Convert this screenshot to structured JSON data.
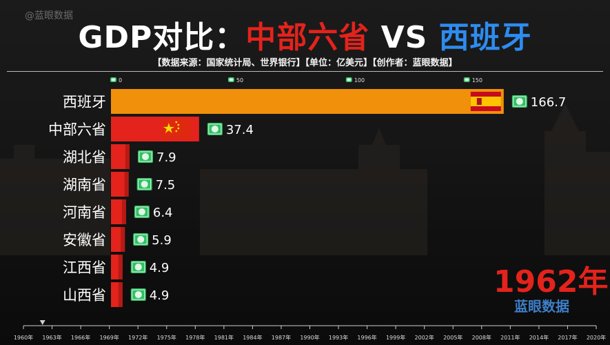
{
  "watermark": "@蓝眼数据",
  "title": {
    "prefix": "GDP对比：",
    "left": "中部六省",
    "vs": "VS",
    "right": "西班牙"
  },
  "subtitle": "【数据来源：国家统计局、世界银行】【单位：亿美元】【创作者：蓝眼数据】",
  "current_year": "1962年",
  "brand": "蓝眼数据",
  "colors": {
    "spain_bar": "#f0900b",
    "china_bar": "#e3231c",
    "title_red": "#e3231c",
    "title_blue": "#2d8cf0",
    "money_icon": "#2fbf62"
  },
  "chart_data": {
    "type": "bar",
    "orientation": "horizontal",
    "categories": [
      "西班牙",
      "中部六省",
      "湖北省",
      "湖南省",
      "河南省",
      "安徽省",
      "江西省",
      "山西省"
    ],
    "values": [
      166.7,
      37.4,
      7.9,
      7.5,
      6.4,
      5.9,
      4.9,
      4.9
    ],
    "value_labels": [
      "166.7",
      "37.4",
      "7.9",
      "7.5",
      "6.4",
      "5.9",
      "4.9",
      "4.9"
    ],
    "bar_icons": [
      "spain-flag",
      "china-flag",
      "",
      "",
      "",
      "",
      "",
      ""
    ],
    "xlim": [
      0,
      170
    ],
    "x_ticks": [
      0,
      50,
      100,
      150
    ],
    "x_tick_labels": [
      "0",
      "50",
      "100",
      "150"
    ],
    "grid": false
  },
  "timeline": {
    "labels": [
      "1960年",
      "1963年",
      "1966年",
      "1969年",
      "1972年",
      "1975年",
      "1978年",
      "1981年",
      "1984年",
      "1987年",
      "1990年",
      "1993年",
      "1996年",
      "1999年",
      "2002年",
      "2005年",
      "2008年",
      "2011年",
      "2014年",
      "2017年",
      "2020年"
    ],
    "marker_year": 1962
  }
}
